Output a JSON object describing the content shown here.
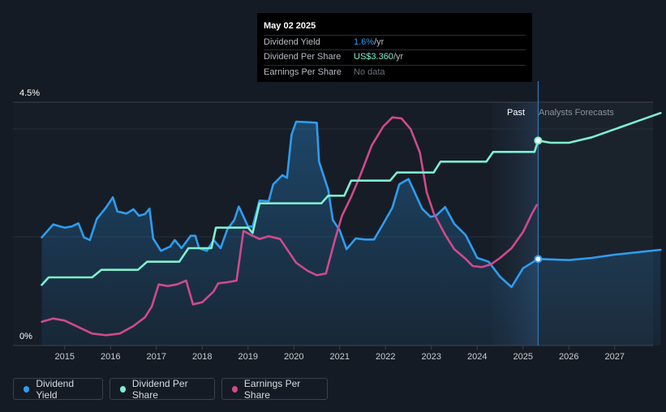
{
  "tooltip": {
    "date": "May 02 2025",
    "rows": [
      {
        "label": "Dividend Yield",
        "value": "1.6%",
        "unit": " /yr"
      },
      {
        "label": "Dividend Per Share",
        "value": "US$3.360",
        "unit": " /yr"
      },
      {
        "label": "Earnings Per Share",
        "value": "No data",
        "unit": ""
      }
    ]
  },
  "regions": {
    "past_label": "Past",
    "forecast_label": "Analysts Forecasts"
  },
  "legend": [
    {
      "label": "Dividend Yield",
      "color": "#2e9df0"
    },
    {
      "label": "Dividend Per Share",
      "color": "#7ef0d0"
    },
    {
      "label": "Earnings Per Share",
      "color": "#cf4a8c"
    }
  ],
  "colors": {
    "background": "#151b24",
    "dividend_yield": "#2e9df0",
    "dividend_per_share": "#7ef0d0",
    "earnings_per_share": "#cf4a8c"
  },
  "chart_data": {
    "type": "line",
    "x_unit": "year",
    "xlim": [
      2014.5,
      2028.0
    ],
    "x_ticks": [
      "2015",
      "2016",
      "2017",
      "2018",
      "2019",
      "2020",
      "2021",
      "2022",
      "2023",
      "2024",
      "2025",
      "2026",
      "2027"
    ],
    "y_axis": {
      "top_label": "4.5%",
      "bottom_label": "0%",
      "ylim": [
        0,
        4.5
      ]
    },
    "past_until": 2025.33,
    "forecast_shade_from": 2024.33,
    "grid": true,
    "legend_position": "bottom-left",
    "series": [
      {
        "name": "Dividend Yield",
        "color": "#2e9df0",
        "filled": true,
        "highlight_at": 2025.33,
        "points": [
          [
            2014.5,
            2.0
          ],
          [
            2014.75,
            2.24
          ],
          [
            2015.0,
            2.18
          ],
          [
            2015.15,
            2.2
          ],
          [
            2015.3,
            2.26
          ],
          [
            2015.42,
            2.0
          ],
          [
            2015.55,
            1.95
          ],
          [
            2015.7,
            2.34
          ],
          [
            2015.9,
            2.55
          ],
          [
            2016.05,
            2.74
          ],
          [
            2016.15,
            2.48
          ],
          [
            2016.35,
            2.44
          ],
          [
            2016.5,
            2.52
          ],
          [
            2016.62,
            2.4
          ],
          [
            2016.75,
            2.43
          ],
          [
            2016.85,
            2.53
          ],
          [
            2016.93,
            1.98
          ],
          [
            2017.1,
            1.75
          ],
          [
            2017.3,
            1.83
          ],
          [
            2017.4,
            1.95
          ],
          [
            2017.55,
            1.8
          ],
          [
            2017.75,
            2.03
          ],
          [
            2017.85,
            2.03
          ],
          [
            2017.93,
            1.8
          ],
          [
            2018.1,
            1.75
          ],
          [
            2018.25,
            1.95
          ],
          [
            2018.4,
            1.8
          ],
          [
            2018.55,
            2.15
          ],
          [
            2018.7,
            2.32
          ],
          [
            2018.8,
            2.57
          ],
          [
            2019.0,
            2.2
          ],
          [
            2019.1,
            2.2
          ],
          [
            2019.25,
            2.68
          ],
          [
            2019.45,
            2.67
          ],
          [
            2019.55,
            2.98
          ],
          [
            2019.75,
            3.15
          ],
          [
            2019.85,
            3.1
          ],
          [
            2019.95,
            3.9
          ],
          [
            2020.05,
            4.14
          ],
          [
            2020.3,
            4.13
          ],
          [
            2020.5,
            4.12
          ],
          [
            2020.55,
            3.4
          ],
          [
            2020.75,
            2.88
          ],
          [
            2020.85,
            2.32
          ],
          [
            2021.0,
            2.13
          ],
          [
            2021.15,
            1.78
          ],
          [
            2021.35,
            1.98
          ],
          [
            2021.55,
            1.96
          ],
          [
            2021.75,
            1.96
          ],
          [
            2021.95,
            2.25
          ],
          [
            2022.15,
            2.55
          ],
          [
            2022.3,
            2.98
          ],
          [
            2022.5,
            3.08
          ],
          [
            2022.6,
            2.9
          ],
          [
            2022.8,
            2.53
          ],
          [
            2022.98,
            2.38
          ],
          [
            2023.1,
            2.4
          ],
          [
            2023.3,
            2.56
          ],
          [
            2023.5,
            2.25
          ],
          [
            2023.75,
            2.04
          ],
          [
            2024.0,
            1.62
          ],
          [
            2024.25,
            1.55
          ],
          [
            2024.5,
            1.27
          ],
          [
            2024.75,
            1.08
          ],
          [
            2025.0,
            1.43
          ],
          [
            2025.33,
            1.6
          ],
          [
            2026.0,
            1.58
          ],
          [
            2026.5,
            1.62
          ],
          [
            2027.0,
            1.68
          ],
          [
            2028.0,
            1.77
          ]
        ]
      },
      {
        "name": "Dividend Per Share",
        "color": "#7ef0d0",
        "highlight_at": 2025.33,
        "points": [
          [
            2014.5,
            1.12
          ],
          [
            2014.65,
            1.26
          ],
          [
            2015.6,
            1.26
          ],
          [
            2015.8,
            1.4
          ],
          [
            2016.6,
            1.4
          ],
          [
            2016.8,
            1.55
          ],
          [
            2017.5,
            1.55
          ],
          [
            2017.7,
            1.8
          ],
          [
            2018.2,
            1.8
          ],
          [
            2018.3,
            2.18
          ],
          [
            2019.0,
            2.18
          ],
          [
            2019.1,
            2.08
          ],
          [
            2019.25,
            2.63
          ],
          [
            2020.6,
            2.63
          ],
          [
            2020.75,
            2.77
          ],
          [
            2021.1,
            2.77
          ],
          [
            2021.25,
            3.05
          ],
          [
            2022.1,
            3.05
          ],
          [
            2022.25,
            3.2
          ],
          [
            2023.05,
            3.2
          ],
          [
            2023.2,
            3.4
          ],
          [
            2024.2,
            3.4
          ],
          [
            2024.35,
            3.58
          ],
          [
            2025.25,
            3.58
          ],
          [
            2025.33,
            3.79
          ],
          [
            2025.6,
            3.75
          ],
          [
            2026.0,
            3.75
          ],
          [
            2026.5,
            3.85
          ],
          [
            2027.0,
            4.0
          ],
          [
            2027.5,
            4.15
          ],
          [
            2028.0,
            4.3
          ]
        ]
      },
      {
        "name": "Earnings Per Share",
        "color": "#cf4a8c",
        "points": [
          [
            2014.5,
            0.44
          ],
          [
            2014.75,
            0.5
          ],
          [
            2015.0,
            0.46
          ],
          [
            2015.3,
            0.34
          ],
          [
            2015.6,
            0.22
          ],
          [
            2015.9,
            0.19
          ],
          [
            2016.2,
            0.22
          ],
          [
            2016.5,
            0.36
          ],
          [
            2016.75,
            0.52
          ],
          [
            2016.9,
            0.72
          ],
          [
            2017.05,
            1.13
          ],
          [
            2017.25,
            1.1
          ],
          [
            2017.45,
            1.13
          ],
          [
            2017.65,
            1.2
          ],
          [
            2017.8,
            0.76
          ],
          [
            2018.0,
            0.8
          ],
          [
            2018.25,
            1.0
          ],
          [
            2018.35,
            1.15
          ],
          [
            2018.55,
            1.17
          ],
          [
            2018.75,
            1.2
          ],
          [
            2018.9,
            2.12
          ],
          [
            2019.05,
            2.05
          ],
          [
            2019.25,
            1.97
          ],
          [
            2019.45,
            2.02
          ],
          [
            2019.7,
            1.97
          ],
          [
            2019.85,
            1.78
          ],
          [
            2020.05,
            1.53
          ],
          [
            2020.3,
            1.38
          ],
          [
            2020.5,
            1.3
          ],
          [
            2020.7,
            1.33
          ],
          [
            2020.9,
            1.97
          ],
          [
            2021.05,
            2.4
          ],
          [
            2021.25,
            2.75
          ],
          [
            2021.45,
            3.15
          ],
          [
            2021.7,
            3.7
          ],
          [
            2021.95,
            4.05
          ],
          [
            2022.15,
            4.22
          ],
          [
            2022.35,
            4.2
          ],
          [
            2022.55,
            4.0
          ],
          [
            2022.75,
            3.57
          ],
          [
            2022.9,
            2.83
          ],
          [
            2023.05,
            2.45
          ],
          [
            2023.3,
            2.05
          ],
          [
            2023.5,
            1.78
          ],
          [
            2023.75,
            1.6
          ],
          [
            2023.9,
            1.47
          ],
          [
            2024.1,
            1.45
          ],
          [
            2024.3,
            1.5
          ],
          [
            2024.5,
            1.62
          ],
          [
            2024.75,
            1.8
          ],
          [
            2025.0,
            2.1
          ],
          [
            2025.2,
            2.45
          ],
          [
            2025.3,
            2.6
          ]
        ]
      }
    ]
  }
}
